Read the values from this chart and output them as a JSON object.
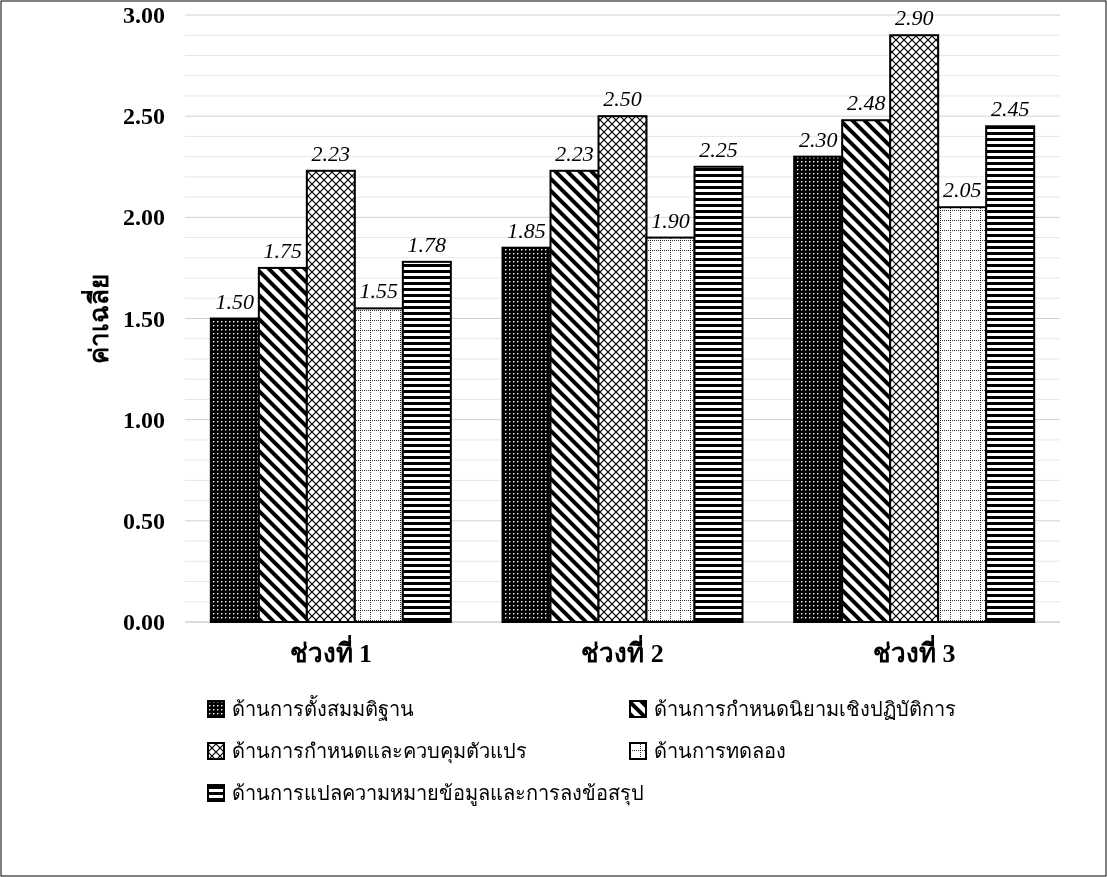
{
  "chart_data": {
    "type": "bar",
    "ylabel": "ค่าเฉลี่ย",
    "categories": [
      "ช่วงที่ 1",
      "ช่วงที่ 2",
      "ช่วงที่ 3"
    ],
    "series": [
      {
        "name": "ด้านการตั้งสมมติฐาน",
        "color": "#000000",
        "values": [
          1.5,
          1.85,
          2.3
        ],
        "value_labels": [
          "1.50",
          "1.85",
          "2.30"
        ]
      },
      {
        "name": "ด้านการกำหนดนิยามเชิงปฏิบัติการ",
        "color": "#000000",
        "values": [
          1.75,
          2.23,
          2.48
        ],
        "value_labels": [
          "1.75",
          "2.23",
          "2.48"
        ]
      },
      {
        "name": "ด้านการกำหนดและควบคุมตัวแปร",
        "color": "#000000",
        "values": [
          2.23,
          2.5,
          2.9
        ],
        "value_labels": [
          "2.23",
          "2.50",
          "2.90"
        ]
      },
      {
        "name": "ด้านการทดลอง",
        "color": "#000000",
        "values": [
          1.55,
          1.9,
          2.05
        ],
        "value_labels": [
          "1.55",
          "1.90",
          "2.05"
        ]
      },
      {
        "name": "ด้านการแปลความหมายข้อมูลและการลงข้อสรุป",
        "color": "#000000",
        "values": [
          1.78,
          2.25,
          2.45
        ],
        "value_labels": [
          "1.78",
          "2.25",
          "2.45"
        ]
      }
    ],
    "ylim": [
      0,
      3
    ],
    "yticks": [
      {
        "value": 0,
        "label": "0.00"
      },
      {
        "value": 0.1,
        "label": null
      },
      {
        "value": 0.2,
        "label": null
      },
      {
        "value": 0.3,
        "label": null
      },
      {
        "value": 0.4,
        "label": null
      },
      {
        "value": 0.5,
        "label": "0.50"
      },
      {
        "value": 0.6,
        "label": null
      },
      {
        "value": 0.7,
        "label": null
      },
      {
        "value": 0.8,
        "label": null
      },
      {
        "value": 0.9,
        "label": null
      },
      {
        "value": 1,
        "label": "1.00"
      },
      {
        "value": 1.1,
        "label": null
      },
      {
        "value": 1.2,
        "label": null
      },
      {
        "value": 1.3,
        "label": null
      },
      {
        "value": 1.4,
        "label": null
      },
      {
        "value": 1.5,
        "label": "1.50"
      },
      {
        "value": 1.6,
        "label": null
      },
      {
        "value": 1.7,
        "label": null
      },
      {
        "value": 1.8,
        "label": null
      },
      {
        "value": 1.9,
        "label": null
      },
      {
        "value": 2,
        "label": "2.00"
      },
      {
        "value": 2.1,
        "label": null
      },
      {
        "value": 2.2,
        "label": null
      },
      {
        "value": 2.3,
        "label": null
      },
      {
        "value": 2.4,
        "label": null
      },
      {
        "value": 2.5,
        "label": "2.50"
      },
      {
        "value": 2.6,
        "label": null
      },
      {
        "value": 2.7,
        "label": null
      },
      {
        "value": 2.8,
        "label": null
      },
      {
        "value": 2.9,
        "label": null
      },
      {
        "value": 3,
        "label": "3.00"
      }
    ],
    "grid": "y",
    "legend": "bottom"
  }
}
